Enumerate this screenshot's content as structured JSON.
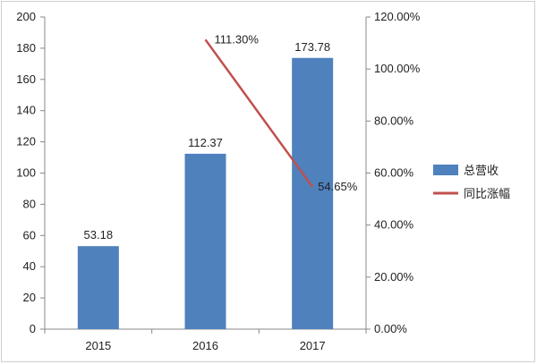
{
  "chart_data": {
    "type": "bar",
    "categories": [
      "2015",
      "2016",
      "2017"
    ],
    "series": [
      {
        "name": "总营收",
        "type": "bar",
        "axis": "left",
        "color": "#4f81bd",
        "values": [
          53.18,
          112.37,
          173.78
        ],
        "labels": [
          "53.18",
          "112.37",
          "173.78"
        ]
      },
      {
        "name": "同比涨幅",
        "type": "line",
        "axis": "right",
        "color": "#c0504d",
        "values": [
          null,
          111.3,
          54.65
        ],
        "labels": [
          null,
          "111.30%",
          "54.65%"
        ]
      }
    ],
    "y_left": {
      "min": 0,
      "max": 200,
      "ticks": [
        "0",
        "20",
        "40",
        "60",
        "80",
        "100",
        "120",
        "140",
        "160",
        "180",
        "200"
      ]
    },
    "y_right": {
      "min": 0,
      "max": 120,
      "ticks": [
        "0.00%",
        "20.00%",
        "40.00%",
        "60.00%",
        "80.00%",
        "100.00%",
        "120.00%"
      ]
    },
    "grid": false,
    "legend_position": "right"
  }
}
